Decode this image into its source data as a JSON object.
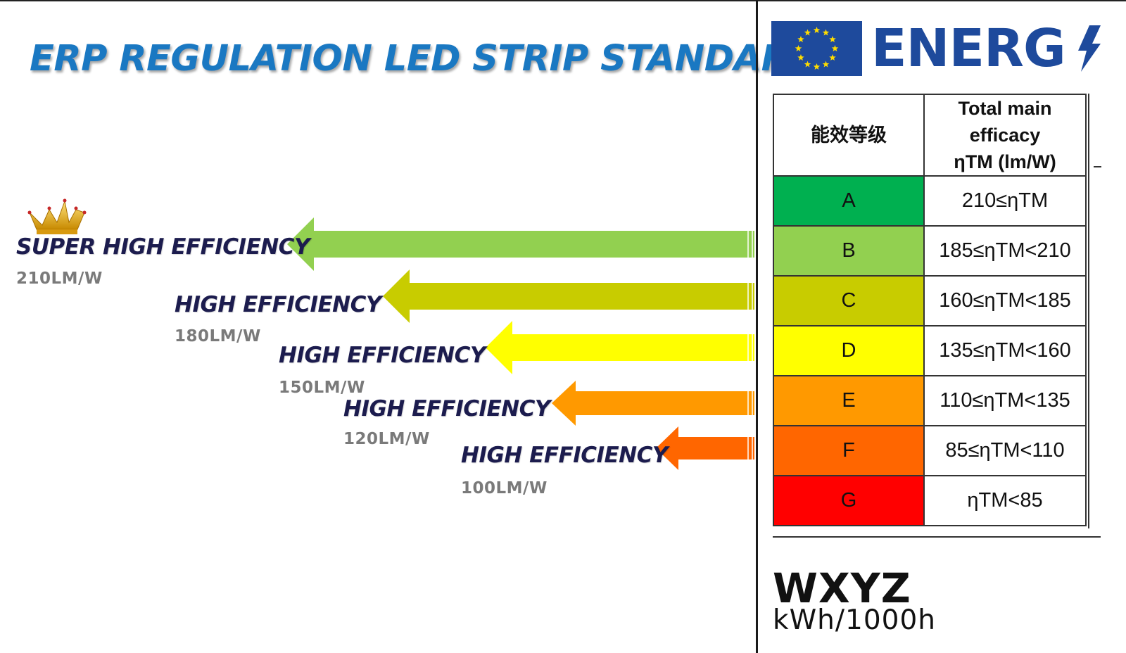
{
  "title": "ERP REGULATION LED STRIP STANDARD",
  "tiers": [
    {
      "label": "SUPER HIGH EFFICIENCY",
      "value": "210LM/W",
      "color": "#92d050"
    },
    {
      "label": "HIGH EFFICIENCY",
      "value": "180LM/W",
      "color": "#c8cc00"
    },
    {
      "label": "HIGH EFFICIENCY",
      "value": "150LM/W",
      "color": "#ffff00"
    },
    {
      "label": "HIGH EFFICIENCY",
      "value": "120LM/W",
      "color": "#ff9900"
    },
    {
      "label": "HIGH EFFICIENCY",
      "value": "100LM/W",
      "color": "#ff6600"
    }
  ],
  "energy_label": {
    "brand_text": "ENERG",
    "table": {
      "header_class": "能效等级",
      "header_efficacy_line1": "Total main efficacy",
      "header_efficacy_line2": "ηTM (lm/W)",
      "rows": [
        {
          "class": "A",
          "range": "210≤ηTM",
          "color": "#00b050"
        },
        {
          "class": "B",
          "range": "185≤ηTM<210",
          "color": "#92d050"
        },
        {
          "class": "C",
          "range": "160≤ηTM<185",
          "color": "#c8cc00"
        },
        {
          "class": "D",
          "range": "135≤ηTM<160",
          "color": "#ffff00"
        },
        {
          "class": "E",
          "range": "110≤ηTM<135",
          "color": "#ff9900"
        },
        {
          "class": "F",
          "range": "85≤ηTM<110",
          "color": "#ff6600"
        },
        {
          "class": "G",
          "range": "ηTM<85",
          "color": "#ff0000"
        }
      ]
    },
    "consumption_value": "WXYZ",
    "consumption_unit": "kWh/1000h"
  }
}
